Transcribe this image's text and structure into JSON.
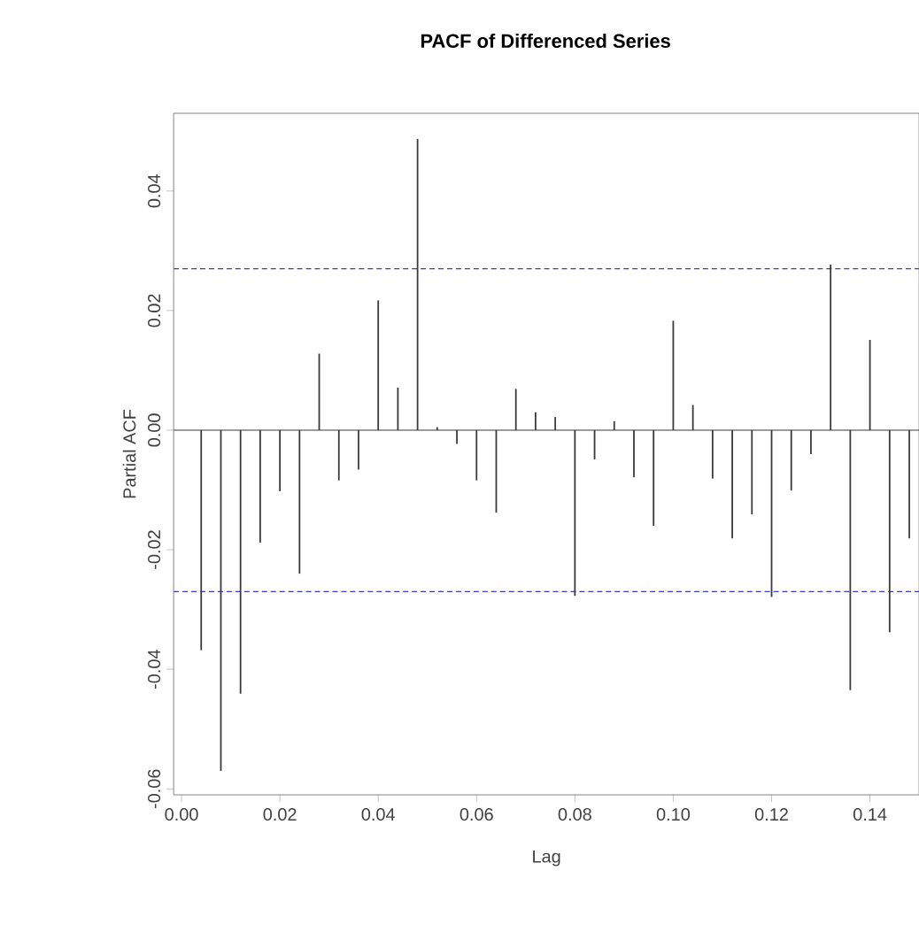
{
  "chart_data": {
    "type": "bar",
    "title": "PACF of Differenced Series",
    "xlabel": "Lag",
    "ylabel": "Partial ACF",
    "x": [
      0.004,
      0.008,
      0.012,
      0.016,
      0.02,
      0.024,
      0.028,
      0.032,
      0.036,
      0.04,
      0.044,
      0.048,
      0.052,
      0.056,
      0.06,
      0.064,
      0.068,
      0.072,
      0.076,
      0.08,
      0.084,
      0.088,
      0.092,
      0.096,
      0.1,
      0.104,
      0.108,
      0.112,
      0.116,
      0.12,
      0.124,
      0.128,
      0.132,
      0.136,
      0.14,
      0.144,
      0.148
    ],
    "values": [
      -0.0368,
      -0.057,
      -0.0441,
      -0.0188,
      -0.0102,
      -0.024,
      0.0128,
      -0.0084,
      -0.0066,
      0.0217,
      0.0071,
      0.0487,
      0.0005,
      -0.0023,
      -0.0084,
      -0.0138,
      0.0069,
      0.003,
      0.0022,
      -0.0277,
      -0.0049,
      0.0015,
      -0.0079,
      -0.016,
      0.0183,
      0.0042,
      -0.0081,
      -0.0181,
      -0.0141,
      -0.0279,
      -0.0101,
      -0.004,
      0.0277,
      -0.0435,
      0.0151,
      -0.0338,
      -0.0181
    ],
    "color": "#3a3a3a",
    "xlim": [
      -0.0016,
      0.15
    ],
    "ylim": [
      -0.061,
      0.053
    ],
    "xticks": [
      {
        "value": 0,
        "label": "0.00"
      },
      0.02,
      0.04,
      0.06,
      0.08,
      {
        "value": 0.1,
        "label": "0.10"
      },
      0.12,
      0.14
    ],
    "yticks": [
      {
        "value": -0.06,
        "label": "-0.06"
      },
      {
        "value": -0.04,
        "label": "-0.04"
      },
      {
        "value": -0.02,
        "label": "-0.02"
      },
      {
        "value": 0,
        "label": "0.00"
      },
      0.02,
      0.04
    ],
    "ref_lines": [
      {
        "axis": "y",
        "value": 0.027,
        "color": "#3b3bc4",
        "line_style": "dashed"
      },
      {
        "axis": "y",
        "value": -0.027,
        "color": "#3b3bc4",
        "line_style": "dashed"
      },
      {
        "axis": "y",
        "value": 0,
        "color": "#3a3a3a",
        "line_style": "solid"
      }
    ]
  }
}
